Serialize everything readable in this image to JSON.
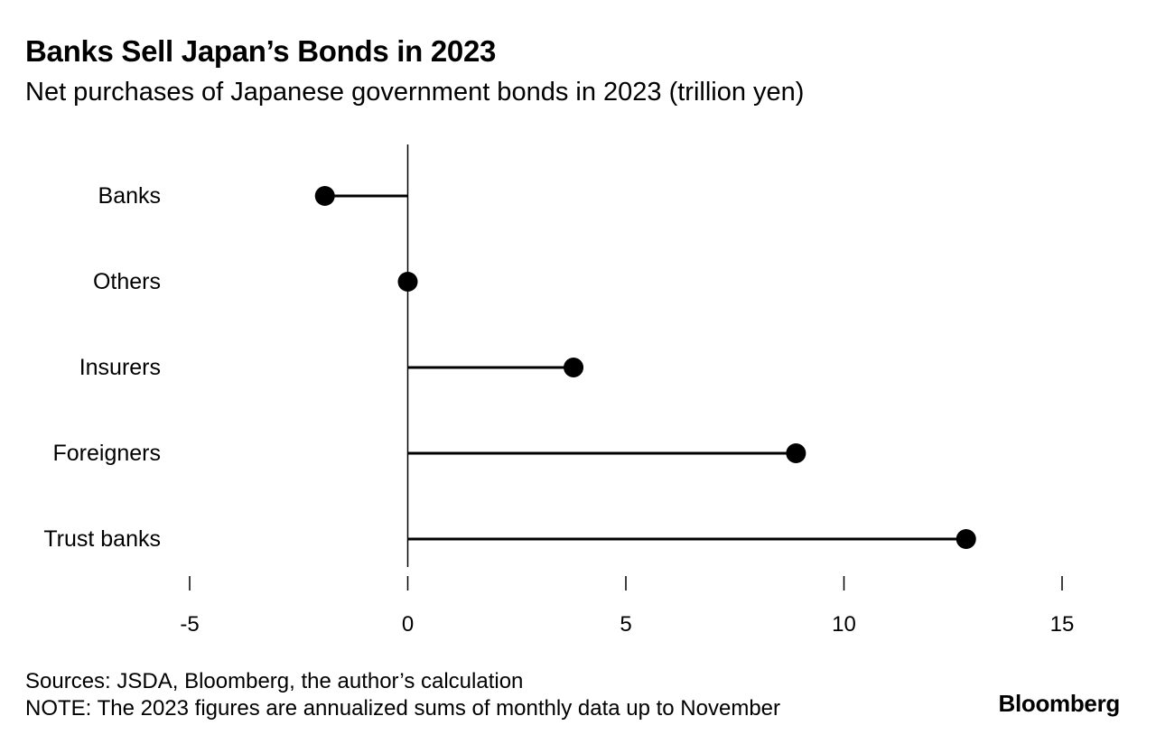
{
  "header": {
    "title": "Banks Sell Japan’s Bonds in 2023",
    "subtitle": "Net purchases of Japanese government bonds in 2023 (trillion yen)"
  },
  "footer": {
    "sources": "Sources: JSDA, Bloomberg, the author’s calculation",
    "note": "NOTE: The 2023 figures are annualized sums of monthly data up to November",
    "logo": "Bloomberg"
  },
  "chart_data": {
    "type": "lollipop",
    "title": "Banks Sell Japan’s Bonds in 2023",
    "subtitle": "Net purchases of Japanese government bonds in 2023 (trillion yen)",
    "categories": [
      "Banks",
      "Others",
      "Insurers",
      "Foreigners",
      "Trust banks"
    ],
    "values": [
      -1.9,
      0.0,
      3.8,
      8.9,
      12.8
    ],
    "xlim": [
      -5,
      15
    ],
    "xticks": [
      -5,
      0,
      5,
      10,
      15
    ],
    "xlabel": "",
    "ylabel": "",
    "grid": false,
    "legend": "none",
    "colors": {
      "marker": "#000000",
      "line": "#000000",
      "axis": "#000000"
    }
  }
}
